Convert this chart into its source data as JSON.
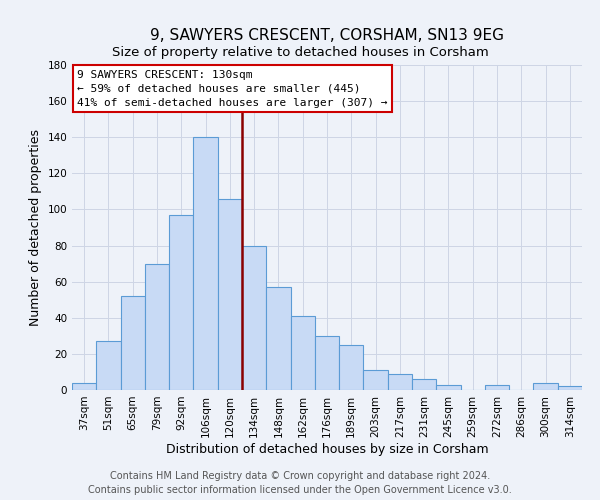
{
  "title": "9, SAWYERS CRESCENT, CORSHAM, SN13 9EG",
  "subtitle": "Size of property relative to detached houses in Corsham",
  "xlabel": "Distribution of detached houses by size in Corsham",
  "ylabel": "Number of detached properties",
  "categories": [
    "37sqm",
    "51sqm",
    "65sqm",
    "79sqm",
    "92sqm",
    "106sqm",
    "120sqm",
    "134sqm",
    "148sqm",
    "162sqm",
    "176sqm",
    "189sqm",
    "203sqm",
    "217sqm",
    "231sqm",
    "245sqm",
    "259sqm",
    "272sqm",
    "286sqm",
    "300sqm",
    "314sqm"
  ],
  "values": [
    4,
    27,
    52,
    70,
    97,
    140,
    106,
    80,
    57,
    41,
    30,
    25,
    11,
    9,
    6,
    3,
    0,
    3,
    0,
    4,
    2
  ],
  "bar_color": "#c8daf5",
  "bar_edge_color": "#5b9bd5",
  "vline_color": "#8b0000",
  "annotation_line1": "9 SAWYERS CRESCENT: 130sqm",
  "annotation_line2": "← 59% of detached houses are smaller (445)",
  "annotation_line3": "41% of semi-detached houses are larger (307) →",
  "annotation_box_color": "#ffffff",
  "annotation_box_edge_color": "#cc0000",
  "ylim": [
    0,
    180
  ],
  "yticks": [
    0,
    20,
    40,
    60,
    80,
    100,
    120,
    140,
    160,
    180
  ],
  "footer_line1": "Contains HM Land Registry data © Crown copyright and database right 2024.",
  "footer_line2": "Contains public sector information licensed under the Open Government Licence v3.0.",
  "background_color": "#eef2f9",
  "grid_color": "#cdd5e5",
  "title_fontsize": 11,
  "subtitle_fontsize": 9.5,
  "axis_label_fontsize": 9,
  "tick_fontsize": 7.5,
  "footer_fontsize": 7
}
